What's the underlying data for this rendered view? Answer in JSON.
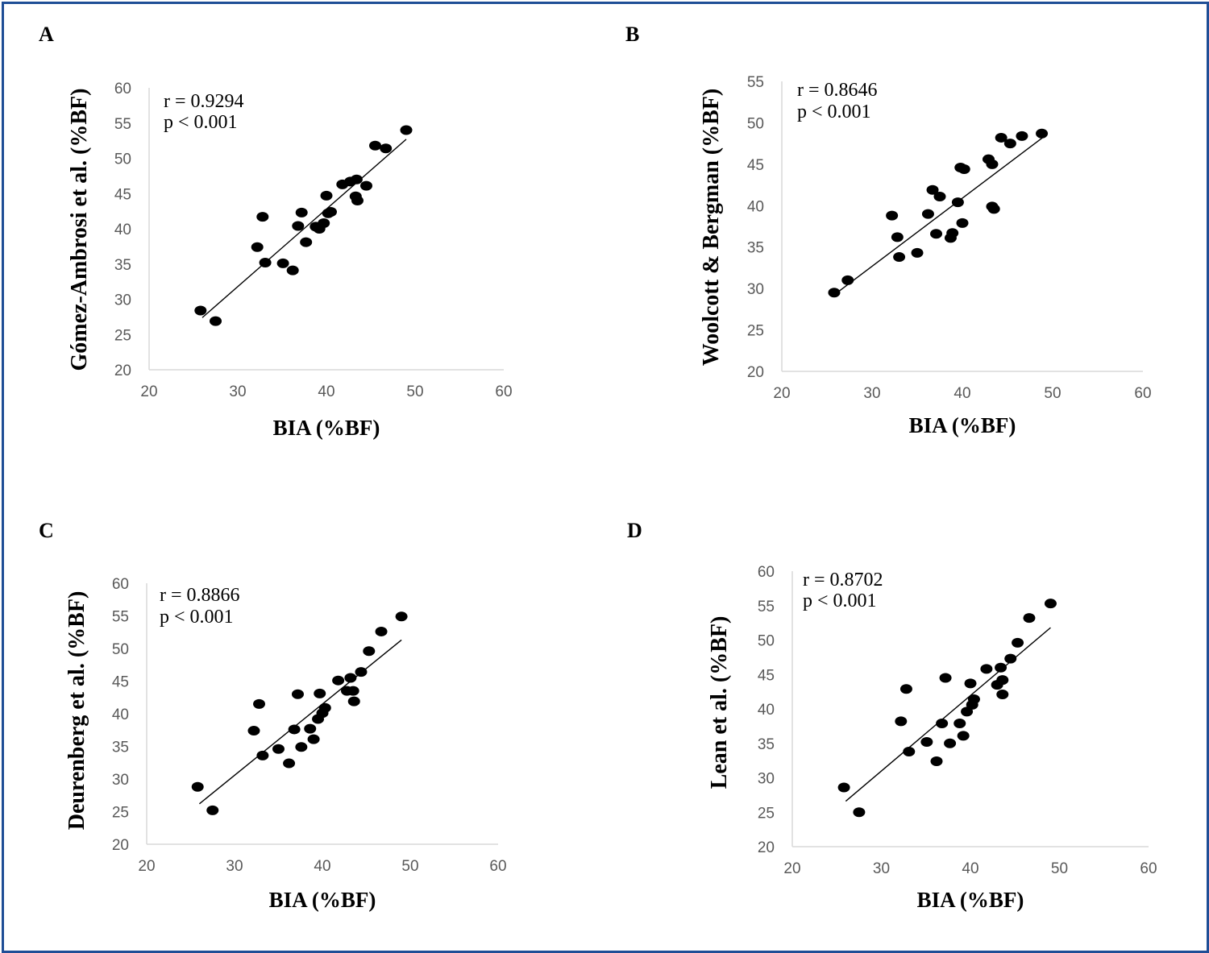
{
  "panels": [
    {
      "letter": "A",
      "ylabel": "Gómez-Ambrosi et al. (%BF)",
      "xlabel": "BIA (%BF)",
      "r_text": "r = 0.9294",
      "p_text": "p < 0.001"
    },
    {
      "letter": "B",
      "ylabel": "Woolcott & Bergman  (%BF)",
      "xlabel": "BIA (%BF)",
      "r_text": "r = 0.8646",
      "p_text": "p < 0.001"
    },
    {
      "letter": "C",
      "ylabel": "Deurenberg et al. (%BF)",
      "xlabel": "BIA (%BF)",
      "r_text": "r = 0.8866",
      "p_text": "p < 0.001"
    },
    {
      "letter": "D",
      "ylabel": "Lean et al. (%BF)",
      "xlabel": "BIA (%BF)",
      "r_text": "r = 0.8702",
      "p_text": "p < 0.001"
    }
  ],
  "chart_data": [
    {
      "type": "scatter",
      "xlabel": "BIA (%BF)",
      "ylabel": "Gómez-Ambrosi et al. (%BF)",
      "xlim": [
        20,
        60
      ],
      "ylim": [
        20,
        60
      ],
      "xticks": [
        20,
        30,
        40,
        50,
        60
      ],
      "yticks": [
        20,
        25,
        30,
        35,
        40,
        45,
        50,
        55,
        60
      ],
      "annotations": [
        "r = 0.9294",
        "p < 0.001"
      ],
      "trendline": [
        [
          26,
          27.4
        ],
        [
          49,
          52.7
        ]
      ],
      "points": [
        [
          25.8,
          28.4
        ],
        [
          27.5,
          26.9
        ],
        [
          32.2,
          37.4
        ],
        [
          32.8,
          41.7
        ],
        [
          33.1,
          35.2
        ],
        [
          35.1,
          35.1
        ],
        [
          36.2,
          34.1
        ],
        [
          36.8,
          40.4
        ],
        [
          37.2,
          42.3
        ],
        [
          37.7,
          38.1
        ],
        [
          38.8,
          40.3
        ],
        [
          39.2,
          40.0
        ],
        [
          39.7,
          40.8
        ],
        [
          40.0,
          44.7
        ],
        [
          40.2,
          42.2
        ],
        [
          40.5,
          42.4
        ],
        [
          41.8,
          46.3
        ],
        [
          42.7,
          46.7
        ],
        [
          43.3,
          44.6
        ],
        [
          43.4,
          47.0
        ],
        [
          43.5,
          44.0
        ],
        [
          44.5,
          46.1
        ],
        [
          45.5,
          51.8
        ],
        [
          46.7,
          51.4
        ],
        [
          49.0,
          54.0
        ]
      ]
    },
    {
      "type": "scatter",
      "xlabel": "BIA (%BF)",
      "ylabel": "Woolcott & Bergman  (%BF)",
      "xlim": [
        20,
        60
      ],
      "ylim": [
        20,
        55
      ],
      "xticks": [
        20,
        30,
        40,
        50,
        60
      ],
      "yticks": [
        20,
        25,
        30,
        35,
        40,
        45,
        50,
        55
      ],
      "annotations": [
        "r = 0.8646",
        "p < 0.001"
      ],
      "trendline": [
        [
          26,
          29.4
        ],
        [
          49,
          48.3
        ]
      ],
      "points": [
        [
          25.8,
          29.5
        ],
        [
          27.3,
          31.0
        ],
        [
          32.2,
          38.8
        ],
        [
          32.8,
          36.2
        ],
        [
          33.0,
          33.8
        ],
        [
          35.0,
          34.3
        ],
        [
          36.2,
          39.0
        ],
        [
          36.7,
          41.9
        ],
        [
          37.1,
          36.6
        ],
        [
          37.5,
          41.1
        ],
        [
          38.7,
          36.1
        ],
        [
          38.9,
          36.7
        ],
        [
          39.5,
          40.4
        ],
        [
          39.8,
          44.6
        ],
        [
          40.0,
          37.9
        ],
        [
          40.2,
          44.4
        ],
        [
          42.9,
          45.6
        ],
        [
          43.3,
          45.0
        ],
        [
          43.3,
          39.9
        ],
        [
          43.5,
          39.6
        ],
        [
          44.3,
          48.2
        ],
        [
          45.3,
          47.5
        ],
        [
          46.6,
          48.4
        ],
        [
          48.8,
          48.7
        ]
      ]
    },
    {
      "type": "scatter",
      "xlabel": "BIA (%BF)",
      "ylabel": "Deurenberg et al. (%BF)",
      "xlim": [
        20,
        60
      ],
      "ylim": [
        20,
        60
      ],
      "xticks": [
        20,
        30,
        40,
        50,
        60
      ],
      "yticks": [
        20,
        25,
        30,
        35,
        40,
        45,
        50,
        55,
        60
      ],
      "annotations": [
        "r = 0.8866",
        "p < 0.001"
      ],
      "trendline": [
        [
          26,
          26.2
        ],
        [
          49,
          51.3
        ]
      ],
      "points": [
        [
          25.8,
          28.8
        ],
        [
          27.5,
          25.2
        ],
        [
          32.2,
          37.4
        ],
        [
          32.8,
          41.5
        ],
        [
          33.2,
          33.6
        ],
        [
          35.0,
          34.6
        ],
        [
          36.2,
          32.4
        ],
        [
          36.8,
          37.6
        ],
        [
          37.2,
          43.0
        ],
        [
          37.6,
          34.9
        ],
        [
          38.6,
          37.7
        ],
        [
          39.0,
          36.1
        ],
        [
          39.5,
          39.2
        ],
        [
          39.7,
          43.1
        ],
        [
          40.0,
          40.1
        ],
        [
          40.3,
          40.9
        ],
        [
          41.8,
          45.1
        ],
        [
          42.8,
          43.5
        ],
        [
          43.2,
          45.5
        ],
        [
          43.5,
          43.5
        ],
        [
          43.6,
          41.9
        ],
        [
          44.4,
          46.4
        ],
        [
          45.3,
          49.6
        ],
        [
          46.7,
          52.6
        ],
        [
          49.0,
          54.9
        ]
      ]
    },
    {
      "type": "scatter",
      "xlabel": "BIA (%BF)",
      "ylabel": "Lean et al. (%BF)",
      "xlim": [
        20,
        60
      ],
      "ylim": [
        20,
        60
      ],
      "xticks": [
        20,
        30,
        40,
        50,
        60
      ],
      "yticks": [
        20,
        25,
        30,
        35,
        40,
        45,
        50,
        55,
        60
      ],
      "annotations": [
        "r = 0.8702",
        "p < 0.001"
      ],
      "trendline": [
        [
          26,
          26.6
        ],
        [
          49,
          51.8
        ]
      ],
      "points": [
        [
          25.8,
          28.6
        ],
        [
          27.5,
          25.0
        ],
        [
          32.2,
          38.2
        ],
        [
          32.8,
          42.9
        ],
        [
          33.1,
          33.8
        ],
        [
          35.1,
          35.2
        ],
        [
          36.2,
          32.4
        ],
        [
          36.8,
          37.9
        ],
        [
          37.2,
          44.5
        ],
        [
          37.7,
          35.0
        ],
        [
          38.8,
          37.9
        ],
        [
          39.2,
          36.1
        ],
        [
          39.6,
          39.6
        ],
        [
          40.0,
          43.7
        ],
        [
          40.2,
          40.6
        ],
        [
          40.4,
          41.4
        ],
        [
          41.8,
          45.8
        ],
        [
          43.0,
          43.5
        ],
        [
          43.4,
          46.0
        ],
        [
          43.6,
          44.2
        ],
        [
          43.6,
          42.1
        ],
        [
          44.5,
          47.3
        ],
        [
          45.3,
          49.6
        ],
        [
          46.6,
          53.2
        ],
        [
          49.0,
          55.3
        ]
      ]
    }
  ]
}
